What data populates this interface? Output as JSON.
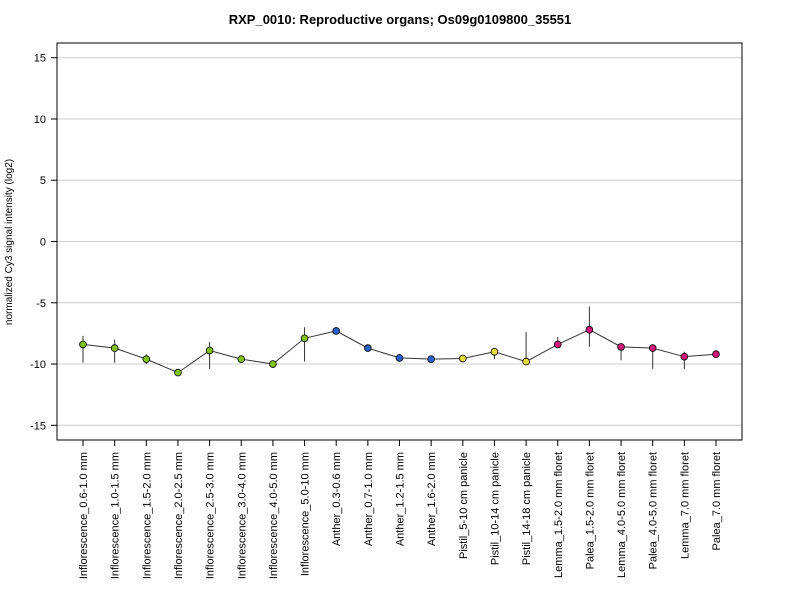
{
  "chart_data": {
    "type": "line",
    "title": "RXP_0010: Reproductive organs; Os09g0109800_35551",
    "ylabel": "normalized Cy3 signal intensity (log2)",
    "xlabel": "",
    "ylim": [
      -16.2,
      16.2
    ],
    "yticks": [
      -15,
      -10,
      -5,
      0,
      5,
      10,
      15
    ],
    "grid": true,
    "categories": [
      "Inflorescence_0.6-1.0 mm",
      "Inflorescence_1.0-1.5 mm",
      "Inflorescence_1.5-2.0 mm",
      "Inflorescence_2.0-2.5 mm",
      "Inflorescence_2.5-3.0 mm",
      "Inflorescence_3.0-4.0 mm",
      "Inflorescence_4.0-5.0 mm",
      "Inflorescence_5.0-10 mm",
      "Anther_0.3-0.6 mm",
      "Anther_0.7-1.0 mm",
      "Anther_1.2-1.5 mm",
      "Anther_1.6-2.0 mm",
      "Pistil_5-10 cm panicle",
      "Pistil_10-14 cm panicle",
      "Pistil_14-18 cm panicle",
      "Lemma_1.5-2.0 mm floret",
      "Palea_1.5-2.0 mm floret",
      "Lemma_4.0-5.0 mm floret",
      "Palea_4.0-5.0 mm floret",
      "Lemma_7.0 mm floret",
      "Palea_7.0 mm floret"
    ],
    "values": [
      -8.4,
      -8.7,
      -9.6,
      -10.7,
      -8.9,
      -9.6,
      -10.0,
      -7.9,
      -7.3,
      -8.7,
      -9.5,
      -9.6,
      -9.55,
      -9.0,
      -9.8,
      -8.4,
      -7.2,
      -8.6,
      -8.7,
      -9.4,
      -9.2
    ],
    "error_low": [
      -9.9,
      -9.9,
      -10.0,
      -10.8,
      -10.4,
      -9.7,
      -10.2,
      -9.8,
      -7.4,
      -8.9,
      -9.6,
      -9.7,
      -9.65,
      -9.6,
      -9.9,
      -8.6,
      -8.6,
      -9.7,
      -10.4,
      -10.4,
      -9.3
    ],
    "error_high": [
      -7.7,
      -8.0,
      -9.2,
      -10.5,
      -8.2,
      -9.5,
      -9.8,
      -7.0,
      -7.1,
      -8.5,
      -9.4,
      -9.5,
      -9.45,
      -8.8,
      -7.4,
      -7.8,
      -5.3,
      -8.4,
      -8.4,
      -9.0,
      -9.1
    ],
    "point_colors": [
      "#7fc31c",
      "#7fc31c",
      "#7fc31c",
      "#7fc31c",
      "#7fc31c",
      "#7fc31c",
      "#7fc31c",
      "#7fc31c",
      "#2a62c9",
      "#2a62c9",
      "#2a62c9",
      "#2a62c9",
      "#e6de3c",
      "#e6de3c",
      "#e6de3c",
      "#d1177b",
      "#d1177b",
      "#d1177b",
      "#d1177b",
      "#d1177b",
      "#d1177b"
    ],
    "line_color": "#333333",
    "grid_color": "#cccccc"
  }
}
